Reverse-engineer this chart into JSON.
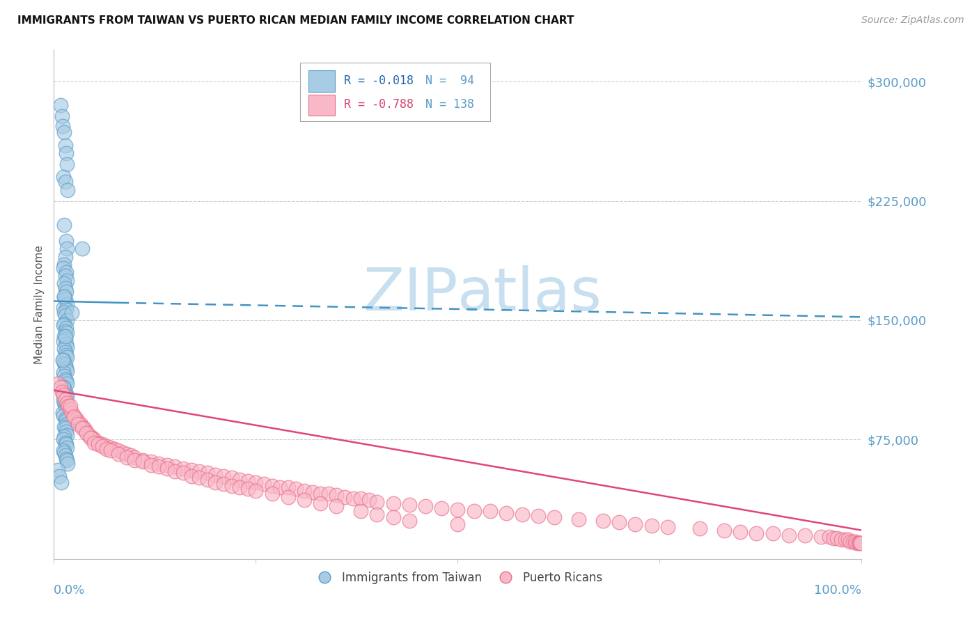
{
  "title": "IMMIGRANTS FROM TAIWAN VS PUERTO RICAN MEDIAN FAMILY INCOME CORRELATION CHART",
  "source": "Source: ZipAtlas.com",
  "ylabel": "Median Family Income",
  "yticks": [
    0,
    75000,
    150000,
    225000,
    300000
  ],
  "ytick_labels": [
    "",
    "$75,000",
    "$150,000",
    "$225,000",
    "$300,000"
  ],
  "ylim": [
    0,
    320000
  ],
  "xlim": [
    0,
    1.0
  ],
  "legend_r1": "R = -0.018",
  "legend_n1": "N =  94",
  "legend_r2": "R = -0.788",
  "legend_n2": "N = 138",
  "color_blue_face": "#a8cce4",
  "color_blue_edge": "#5b9dc9",
  "color_blue_dark": "#2166ac",
  "color_pink_face": "#f9b8c8",
  "color_pink_edge": "#e8708a",
  "color_pink_dark": "#d4436e",
  "color_blue_line": "#4393c3",
  "color_pink_line": "#e0457b",
  "color_axis_labels": "#5b9dc9",
  "watermark_color": "#c8dff0",
  "taiwan_x": [
    0.008,
    0.01,
    0.011,
    0.013,
    0.014,
    0.015,
    0.016,
    0.012,
    0.014,
    0.017,
    0.013,
    0.015,
    0.016,
    0.014,
    0.013,
    0.012,
    0.015,
    0.014,
    0.016,
    0.013,
    0.014,
    0.015,
    0.013,
    0.014,
    0.016,
    0.012,
    0.015,
    0.013,
    0.014,
    0.016,
    0.013,
    0.012,
    0.015,
    0.014,
    0.016,
    0.013,
    0.014,
    0.012,
    0.015,
    0.016,
    0.013,
    0.014,
    0.015,
    0.016,
    0.012,
    0.013,
    0.014,
    0.015,
    0.016,
    0.012,
    0.013,
    0.014,
    0.015,
    0.016,
    0.012,
    0.013,
    0.014,
    0.015,
    0.016,
    0.012,
    0.013,
    0.014,
    0.015,
    0.016,
    0.011,
    0.012,
    0.014,
    0.015,
    0.016,
    0.013,
    0.014,
    0.015,
    0.016,
    0.013,
    0.012,
    0.014,
    0.015,
    0.016,
    0.012,
    0.013,
    0.014,
    0.015,
    0.016,
    0.017,
    0.035,
    0.005,
    0.007,
    0.009,
    0.022,
    0.013,
    0.011,
    0.014,
    0.012,
    0.016
  ],
  "taiwan_y": [
    285000,
    278000,
    272000,
    268000,
    260000,
    255000,
    248000,
    240000,
    237000,
    232000,
    210000,
    200000,
    195000,
    190000,
    185000,
    183000,
    180000,
    178000,
    175000,
    173000,
    170000,
    168000,
    165000,
    163000,
    160000,
    158000,
    157000,
    155000,
    153000,
    150000,
    148000,
    147000,
    145000,
    143000,
    142000,
    140000,
    138000,
    137000,
    135000,
    133000,
    132000,
    130000,
    128000,
    127000,
    125000,
    123000,
    122000,
    120000,
    118000,
    117000,
    115000,
    113000,
    112000,
    110000,
    108000,
    107000,
    105000,
    103000,
    102000,
    100000,
    98000,
    97000,
    95000,
    93000,
    92000,
    90000,
    88000,
    87000,
    85000,
    83000,
    82000,
    80000,
    78000,
    77000,
    75000,
    73000,
    72000,
    70000,
    68000,
    67000,
    65000,
    63000,
    62000,
    60000,
    195000,
    56000,
    52000,
    48000,
    155000,
    165000,
    125000,
    140000,
    108000,
    98000
  ],
  "puertorico_x": [
    0.005,
    0.008,
    0.01,
    0.012,
    0.014,
    0.016,
    0.018,
    0.02,
    0.022,
    0.025,
    0.028,
    0.03,
    0.033,
    0.035,
    0.038,
    0.04,
    0.043,
    0.045,
    0.048,
    0.05,
    0.055,
    0.06,
    0.065,
    0.07,
    0.075,
    0.08,
    0.085,
    0.09,
    0.095,
    0.1,
    0.11,
    0.12,
    0.13,
    0.14,
    0.15,
    0.16,
    0.17,
    0.18,
    0.19,
    0.2,
    0.21,
    0.22,
    0.23,
    0.24,
    0.25,
    0.26,
    0.27,
    0.28,
    0.29,
    0.3,
    0.31,
    0.32,
    0.33,
    0.34,
    0.35,
    0.36,
    0.37,
    0.38,
    0.39,
    0.4,
    0.42,
    0.44,
    0.46,
    0.48,
    0.5,
    0.52,
    0.54,
    0.56,
    0.58,
    0.6,
    0.62,
    0.65,
    0.68,
    0.7,
    0.72,
    0.74,
    0.76,
    0.8,
    0.83,
    0.85,
    0.87,
    0.89,
    0.91,
    0.93,
    0.95,
    0.96,
    0.965,
    0.97,
    0.975,
    0.98,
    0.983,
    0.986,
    0.989,
    0.992,
    0.994,
    0.996,
    0.997,
    0.998,
    0.999,
    0.02,
    0.025,
    0.03,
    0.035,
    0.04,
    0.045,
    0.05,
    0.055,
    0.06,
    0.065,
    0.07,
    0.08,
    0.09,
    0.1,
    0.11,
    0.12,
    0.13,
    0.14,
    0.15,
    0.16,
    0.17,
    0.18,
    0.19,
    0.2,
    0.21,
    0.22,
    0.23,
    0.24,
    0.25,
    0.27,
    0.29,
    0.31,
    0.33,
    0.35,
    0.38,
    0.4,
    0.42,
    0.44,
    0.5
  ],
  "puertorico_y": [
    110000,
    108000,
    105000,
    103000,
    100000,
    98000,
    96000,
    94000,
    92000,
    90000,
    88000,
    86000,
    85000,
    83000,
    82000,
    80000,
    78000,
    77000,
    76000,
    75000,
    73000,
    72000,
    71000,
    70000,
    69000,
    68000,
    67000,
    66000,
    65000,
    64000,
    62000,
    61000,
    60000,
    59000,
    58000,
    57000,
    56000,
    55000,
    54000,
    53000,
    52000,
    51000,
    50000,
    49000,
    48000,
    47000,
    46000,
    45000,
    45000,
    44000,
    43000,
    42000,
    41000,
    41000,
    40000,
    39000,
    38000,
    38000,
    37000,
    36000,
    35000,
    34000,
    33000,
    32000,
    31000,
    30000,
    30000,
    29000,
    28000,
    27000,
    26000,
    25000,
    24000,
    23000,
    22000,
    21000,
    20000,
    19000,
    18000,
    17000,
    16000,
    16000,
    15000,
    15000,
    14000,
    14000,
    13000,
    13000,
    12000,
    12000,
    12000,
    11000,
    11000,
    11000,
    10000,
    10000,
    10000,
    10000,
    10000,
    96000,
    89000,
    85000,
    82000,
    79000,
    76000,
    73000,
    72000,
    71000,
    69000,
    68000,
    66000,
    64000,
    62000,
    61000,
    59000,
    58000,
    57000,
    55000,
    54000,
    52000,
    51000,
    50000,
    48000,
    47000,
    46000,
    45000,
    44000,
    43000,
    41000,
    39000,
    37000,
    35000,
    33000,
    30000,
    28000,
    26000,
    24000,
    22000
  ],
  "taiwan_trend_x": [
    0.0,
    0.08,
    0.5,
    1.0
  ],
  "taiwan_trend_y": [
    162000,
    161000,
    157000,
    152000
  ],
  "pr_trend_x": [
    0.0,
    1.0
  ],
  "pr_trend_y": [
    106000,
    18000
  ]
}
